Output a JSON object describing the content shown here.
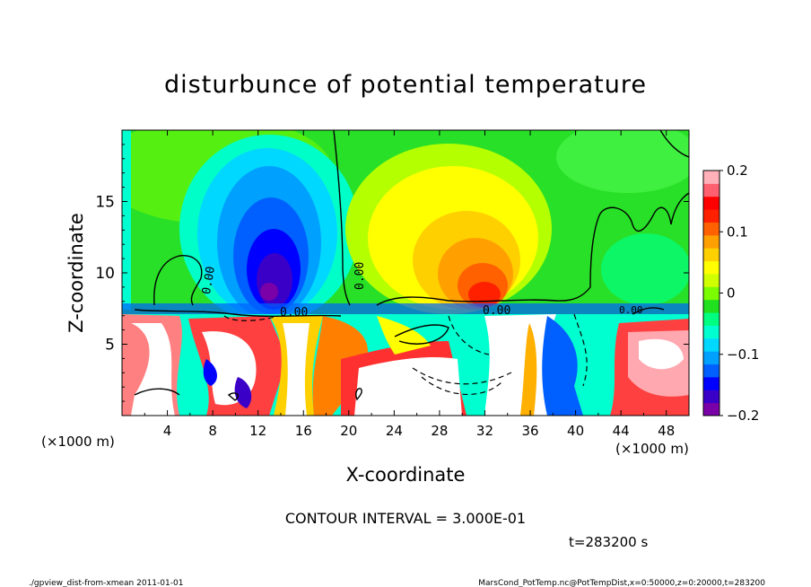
{
  "chart_data": {
    "type": "heatmap",
    "title": "disturbunce of potential temperature",
    "xlabel": "X-coordinate",
    "ylabel": "Z-coordinate",
    "x_unit": "(×1000 m)",
    "z_unit": "(×1000 m)",
    "xlim": [
      0,
      50
    ],
    "ylim": [
      0,
      20
    ],
    "x_ticks": [
      "4",
      "8",
      "12",
      "16",
      "20",
      "24",
      "28",
      "32",
      "36",
      "40",
      "44",
      "48"
    ],
    "y_ticks": [
      "5",
      "10",
      "15"
    ],
    "colorbar": {
      "range": [
        -0.2,
        0.2
      ],
      "ticks": [
        "0.2",
        "0.1",
        "0",
        "−0.1",
        "−0.2"
      ],
      "colors": [
        "#7a00a8",
        "#3a00c8",
        "#0000ff",
        "#0060ff",
        "#00a0ff",
        "#00d8ff",
        "#00ffd0",
        "#00ff80",
        "#20e020",
        "#7cfc00",
        "#d0ff00",
        "#ffff00",
        "#ffd000",
        "#ffa000",
        "#ff6000",
        "#ff2000",
        "#ff0000",
        "#ff6070",
        "#ffb0b8"
      ]
    },
    "contour_labels": [
      "0.00",
      "0.00",
      "0.00",
      "0.00",
      "0.00"
    ],
    "contour_interval": "CONTOUR INTERVAL = 3.000E-01",
    "time_label": "t=283200 s",
    "features": [
      {
        "name": "cold anomaly",
        "x": 13.5,
        "z": 11,
        "value": -0.2
      },
      {
        "name": "warm anomaly",
        "x": 31,
        "z": 9.5,
        "value": 0.15
      }
    ]
  },
  "footer": {
    "left": "./gpview_dist-from-xmean  2011-01-01",
    "right": "MarsCond_PotTemp.nc@PotTempDist,x=0:50000,z=0:20000,t=283200"
  }
}
